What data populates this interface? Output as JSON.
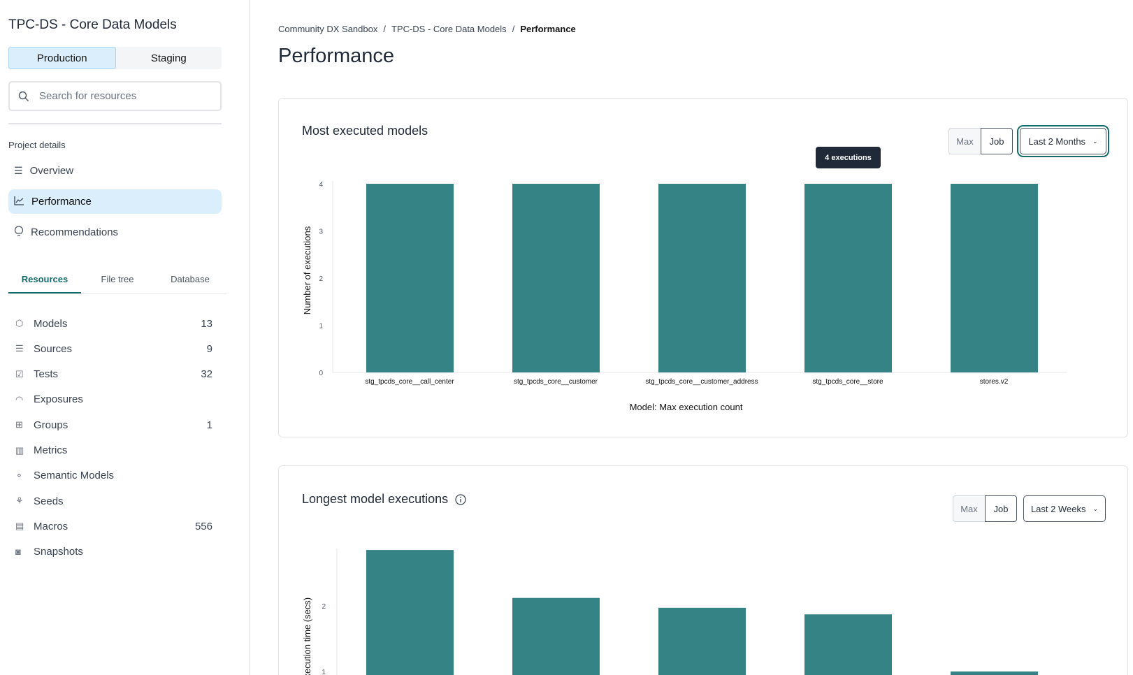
{
  "sidebar": {
    "project_title": "TPC-DS - Core Data Models",
    "env_tabs": [
      "Production",
      "Staging"
    ],
    "search_placeholder": "Search for resources",
    "section_label": "Project details",
    "nav": [
      {
        "label": "Overview",
        "icon": "list-icon"
      },
      {
        "label": "Performance",
        "icon": "line-chart-icon"
      },
      {
        "label": "Recommendations",
        "icon": "lightbulb-icon"
      }
    ],
    "tabs": [
      "Resources",
      "File tree",
      "Database"
    ],
    "resources": [
      {
        "label": "Models",
        "count": "13",
        "icon": "cube-icon"
      },
      {
        "label": "Sources",
        "count": "9",
        "icon": "database-icon"
      },
      {
        "label": "Tests",
        "count": "32",
        "icon": "clipboard-check-icon"
      },
      {
        "label": "Exposures",
        "count": "",
        "icon": "gauge-icon"
      },
      {
        "label": "Groups",
        "count": "1",
        "icon": "grid-icon"
      },
      {
        "label": "Metrics",
        "count": "",
        "icon": "bar-chart-icon"
      },
      {
        "label": "Semantic Models",
        "count": "",
        "icon": "nodes-icon"
      },
      {
        "label": "Seeds",
        "count": "",
        "icon": "sprout-icon"
      },
      {
        "label": "Macros",
        "count": "556",
        "icon": "file-icon"
      },
      {
        "label": "Snapshots",
        "count": "",
        "icon": "camera-icon"
      }
    ]
  },
  "breadcrumb": [
    "Community DX Sandbox",
    "TPC-DS - Core Data Models",
    "Performance"
  ],
  "page_title": "Performance",
  "cards": [
    {
      "title": "Most executed models",
      "toggle": [
        "Max",
        "Job"
      ],
      "range": "Last 2 Months",
      "tooltip": "4 executions"
    },
    {
      "title": "Longest model executions",
      "toggle": [
        "Max",
        "Job"
      ],
      "range": "Last 2 Weeks"
    }
  ],
  "colors": {
    "bar": "#358385",
    "accent": "#136b6b",
    "active_bg": "#dbeefc"
  },
  "chart_data": [
    {
      "type": "bar",
      "title": "Most executed models",
      "xlabel": "Model: Max execution count",
      "ylabel": "Number of executions",
      "categories": [
        "stg_tpcds_core__call_center",
        "stg_tpcds_core__customer",
        "stg_tpcds_core__customer_address",
        "stg_tpcds_core__store",
        "stores.v2"
      ],
      "values": [
        4,
        4,
        4,
        4,
        4
      ],
      "ylim": [
        0,
        4
      ],
      "yticks": [
        "0",
        "1",
        "2",
        "3",
        "4"
      ],
      "grid": false
    },
    {
      "type": "bar",
      "title": "Longest model executions",
      "ylabel": "Execution time (secs)",
      "values": [
        2.85,
        2.12,
        1.97,
        1.87,
        1.0
      ],
      "yticks": [
        "1",
        "2"
      ],
      "grid": false
    }
  ]
}
